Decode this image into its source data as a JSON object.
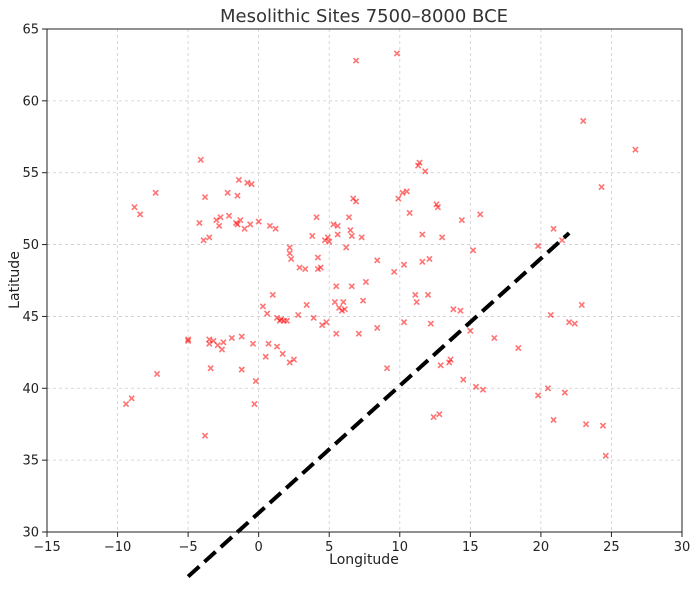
{
  "chart_data": {
    "type": "scatter",
    "title": "Mesolithic Sites 7500–8000 BCE",
    "xlabel": "Longitude",
    "ylabel": "Latitude",
    "xlim": [
      -15,
      30
    ],
    "ylim": [
      30,
      65
    ],
    "x_ticks": [
      -15,
      -10,
      -5,
      0,
      5,
      10,
      15,
      20,
      25,
      30
    ],
    "y_ticks": [
      30,
      35,
      40,
      45,
      50,
      55,
      60,
      65
    ],
    "x_tick_labels": [
      "−15",
      "−10",
      "−5",
      "0",
      "5",
      "10",
      "15",
      "20",
      "25",
      "30"
    ],
    "y_tick_labels": [
      "30",
      "35",
      "40",
      "45",
      "50",
      "55",
      "60",
      "65"
    ],
    "grid": true,
    "marker": "x",
    "marker_color": "#ff0000",
    "series": [
      {
        "points": [
          [
            -9.4,
            38.9
          ],
          [
            -9.0,
            39.3
          ],
          [
            -8.8,
            52.6
          ],
          [
            -8.4,
            52.1
          ],
          [
            -7.3,
            53.6
          ],
          [
            -7.2,
            41.0
          ],
          [
            -5.0,
            43.4
          ],
          [
            -5.0,
            43.3
          ],
          [
            -4.2,
            51.5
          ],
          [
            -4.1,
            55.9
          ],
          [
            -3.9,
            50.3
          ],
          [
            -3.8,
            53.3
          ],
          [
            -3.8,
            36.7
          ],
          [
            -3.5,
            50.5
          ],
          [
            -3.5,
            43.4
          ],
          [
            -3.5,
            43.1
          ],
          [
            -3.4,
            41.4
          ],
          [
            -3.2,
            43.3
          ],
          [
            -3.0,
            51.7
          ],
          [
            -2.9,
            43.0
          ],
          [
            -2.8,
            51.3
          ],
          [
            -2.7,
            51.9
          ],
          [
            -2.6,
            42.7
          ],
          [
            -2.5,
            43.2
          ],
          [
            -2.2,
            53.6
          ],
          [
            -2.1,
            52.0
          ],
          [
            -1.9,
            43.5
          ],
          [
            -1.6,
            51.5
          ],
          [
            -1.5,
            51.4
          ],
          [
            -1.5,
            53.4
          ],
          [
            -1.4,
            54.5
          ],
          [
            -1.3,
            51.7
          ],
          [
            -1.2,
            43.6
          ],
          [
            -1.2,
            41.3
          ],
          [
            -1.0,
            51.1
          ],
          [
            -0.8,
            54.3
          ],
          [
            -0.6,
            51.4
          ],
          [
            -0.5,
            54.2
          ],
          [
            -0.4,
            43.1
          ],
          [
            -0.3,
            38.9
          ],
          [
            -0.2,
            40.5
          ],
          [
            0.0,
            51.6
          ],
          [
            0.3,
            45.7
          ],
          [
            0.5,
            42.2
          ],
          [
            0.6,
            45.2
          ],
          [
            0.7,
            43.1
          ],
          [
            0.8,
            51.3
          ],
          [
            1.0,
            46.5
          ],
          [
            1.2,
            51.1
          ],
          [
            1.3,
            44.9
          ],
          [
            1.3,
            42.9
          ],
          [
            1.5,
            44.7
          ],
          [
            1.6,
            44.8
          ],
          [
            1.7,
            42.4
          ],
          [
            1.8,
            44.7
          ],
          [
            2.0,
            44.7
          ],
          [
            2.2,
            49.8
          ],
          [
            2.2,
            49.4
          ],
          [
            2.3,
            49.0
          ],
          [
            2.2,
            41.8
          ],
          [
            2.5,
            42.0
          ],
          [
            2.8,
            45.1
          ],
          [
            2.9,
            48.4
          ],
          [
            3.3,
            48.3
          ],
          [
            3.4,
            45.8
          ],
          [
            3.8,
            50.6
          ],
          [
            3.9,
            44.9
          ],
          [
            4.1,
            51.9
          ],
          [
            4.2,
            49.1
          ],
          [
            4.2,
            48.3
          ],
          [
            4.4,
            48.4
          ],
          [
            4.5,
            44.4
          ],
          [
            4.7,
            50.3
          ],
          [
            4.8,
            44.6
          ],
          [
            4.9,
            50.5
          ],
          [
            5.0,
            50.2
          ],
          [
            5.3,
            51.4
          ],
          [
            5.4,
            46.0
          ],
          [
            5.5,
            47.1
          ],
          [
            5.5,
            43.8
          ],
          [
            5.6,
            51.3
          ],
          [
            5.6,
            50.7
          ],
          [
            5.7,
            45.6
          ],
          [
            5.9,
            45.4
          ],
          [
            6.0,
            46.0
          ],
          [
            6.1,
            45.5
          ],
          [
            6.2,
            49.8
          ],
          [
            6.4,
            51.9
          ],
          [
            6.5,
            51.0
          ],
          [
            6.6,
            50.6
          ],
          [
            6.6,
            47.1
          ],
          [
            6.7,
            53.2
          ],
          [
            6.9,
            53.0
          ],
          [
            7.1,
            43.8
          ],
          [
            7.3,
            50.5
          ],
          [
            7.4,
            46.1
          ],
          [
            7.6,
            47.4
          ],
          [
            8.4,
            44.2
          ],
          [
            8.4,
            48.9
          ],
          [
            6.9,
            62.8
          ],
          [
            9.1,
            41.4
          ],
          [
            9.6,
            48.1
          ],
          [
            9.9,
            53.2
          ],
          [
            9.8,
            63.3
          ],
          [
            10.2,
            53.6
          ],
          [
            10.3,
            48.6
          ],
          [
            10.3,
            44.6
          ],
          [
            10.5,
            53.7
          ],
          [
            10.7,
            52.2
          ],
          [
            11.1,
            46.5
          ],
          [
            11.2,
            46.0
          ],
          [
            11.3,
            55.5
          ],
          [
            11.4,
            55.7
          ],
          [
            11.6,
            50.7
          ],
          [
            11.6,
            48.8
          ],
          [
            11.8,
            55.1
          ],
          [
            12.0,
            46.5
          ],
          [
            12.1,
            49.0
          ],
          [
            12.2,
            44.5
          ],
          [
            12.4,
            38.0
          ],
          [
            12.6,
            52.8
          ],
          [
            12.7,
            52.6
          ],
          [
            12.8,
            38.2
          ],
          [
            12.9,
            41.6
          ],
          [
            13.0,
            50.5
          ],
          [
            13.5,
            41.8
          ],
          [
            13.6,
            42.0
          ],
          [
            13.8,
            45.5
          ],
          [
            14.3,
            45.4
          ],
          [
            14.4,
            51.7
          ],
          [
            14.5,
            40.6
          ],
          [
            15.0,
            44.0
          ],
          [
            15.2,
            49.6
          ],
          [
            15.4,
            40.1
          ],
          [
            15.7,
            52.1
          ],
          [
            15.9,
            39.9
          ],
          [
            16.7,
            43.5
          ],
          [
            18.4,
            42.8
          ],
          [
            19.8,
            39.5
          ],
          [
            19.8,
            49.9
          ],
          [
            20.5,
            40.0
          ],
          [
            20.7,
            45.1
          ],
          [
            20.9,
            37.8
          ],
          [
            20.9,
            51.1
          ],
          [
            21.5,
            50.3
          ],
          [
            21.7,
            39.7
          ],
          [
            22.0,
            44.6
          ],
          [
            22.4,
            44.5
          ],
          [
            22.9,
            45.8
          ],
          [
            23.0,
            58.6
          ],
          [
            23.2,
            37.5
          ],
          [
            24.3,
            54.0
          ],
          [
            24.4,
            37.4
          ],
          [
            24.6,
            35.3
          ],
          [
            26.7,
            56.6
          ]
        ]
      }
    ],
    "annotations": [
      {
        "type": "line",
        "style": "dashed",
        "color": "#000000",
        "from": [
          -5,
          26.9
        ],
        "to": [
          22,
          50.8
        ]
      }
    ]
  }
}
